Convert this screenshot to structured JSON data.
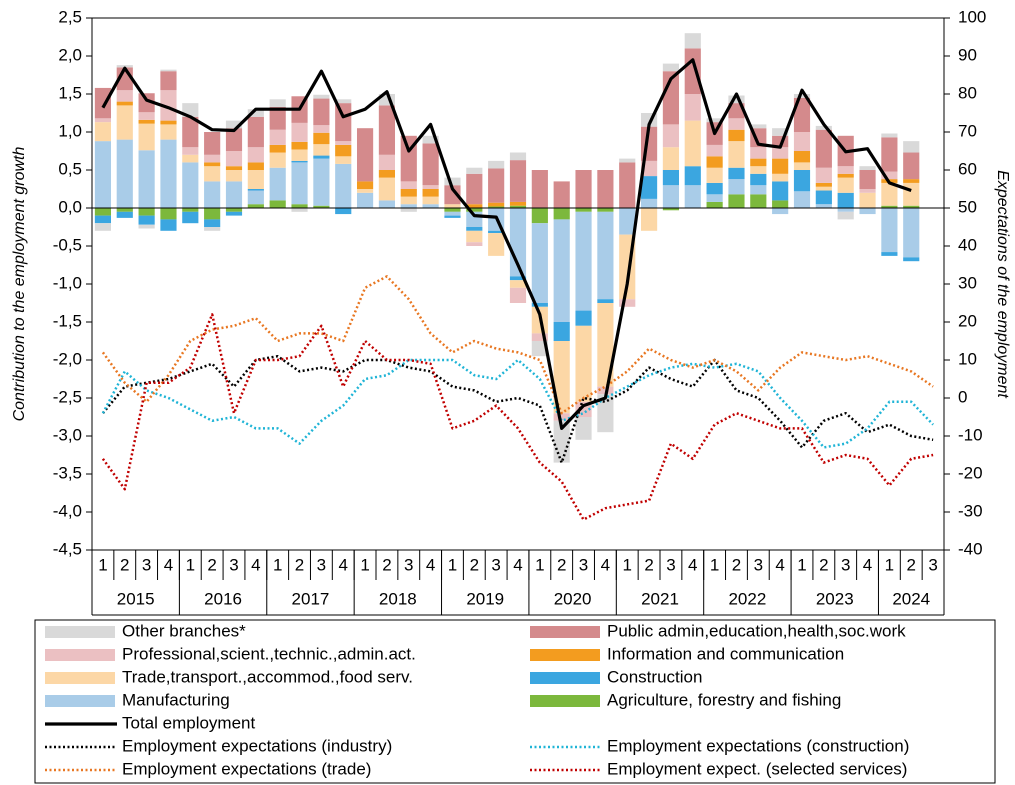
{
  "chart_data": {
    "type": "stacked_bar_line",
    "y_label": "Contribution to the employment growth",
    "y2_label": "Expectations of the employment",
    "categories": [
      "1",
      "2",
      "3",
      "4",
      "1",
      "2",
      "3",
      "4",
      "1",
      "2",
      "3",
      "4",
      "1",
      "2",
      "3",
      "4",
      "1",
      "2",
      "3",
      "4",
      "1",
      "2",
      "3",
      "4",
      "1",
      "2",
      "3",
      "4",
      "1",
      "2",
      "3",
      "4",
      "1",
      "2",
      "3",
      "4",
      "1",
      "2",
      "3"
    ],
    "years": [
      "2015",
      "2016",
      "2017",
      "2018",
      "2019",
      "2020",
      "2021",
      "2022",
      "2023",
      "2024"
    ],
    "ylim": [
      -4.5,
      2.5
    ],
    "yticks": [
      {
        "value": 2.5,
        "label": "2,5"
      },
      {
        "value": 2.0,
        "label": "2,0"
      },
      {
        "value": 1.5,
        "label": "1,5"
      },
      {
        "value": 1.0,
        "label": "1,0"
      },
      {
        "value": 0.5,
        "label": "0,5"
      },
      {
        "value": 0,
        "label": "0,0"
      },
      {
        "value": -0.5,
        "label": "-0,5"
      },
      {
        "value": -1.0,
        "label": "-1,0"
      },
      {
        "value": -1.5,
        "label": "-1,5"
      },
      {
        "value": -2.0,
        "label": "-2,0"
      },
      {
        "value": -2.5,
        "label": "-2,5"
      },
      {
        "value": -3.0,
        "label": "-3,0"
      },
      {
        "value": -3.5,
        "label": "-3,5"
      },
      {
        "value": -4.0,
        "label": "-4,0"
      },
      {
        "value": -4.5,
        "label": "-4,5"
      }
    ],
    "y2lim": [
      -40,
      100
    ],
    "y2ticks": [
      100,
      90,
      80,
      70,
      60,
      50,
      40,
      30,
      20,
      10,
      0,
      -10,
      -20,
      -30,
      -40
    ],
    "grid": false,
    "series": [
      {
        "name": "Other branches*",
        "type": "bar",
        "color": "#d9d9d9",
        "values": [
          -0.1,
          0.03,
          -0.05,
          0.02,
          0.18,
          -0.05,
          0.1,
          0.1,
          0.1,
          -0.05,
          0.05,
          0.05,
          0.0,
          0.15,
          -0.05,
          0.1,
          0.1,
          0.08,
          0.1,
          0.1,
          -0.2,
          -0.55,
          -0.3,
          -0.5,
          0.05,
          0.18,
          0.1,
          0.2,
          0.05,
          0.1,
          0.05,
          0.1,
          0.05,
          0.05,
          -0.1,
          0.05,
          0.05,
          0.15,
          null
        ]
      },
      {
        "name": "Public admin,education,health,soc.work",
        "type": "bar",
        "color": "#d48a8c",
        "values": [
          0.4,
          0.3,
          0.25,
          0.25,
          0.4,
          0.3,
          0.3,
          0.4,
          0.3,
          0.35,
          0.35,
          0.5,
          0.7,
          0.65,
          0.6,
          0.55,
          0.25,
          0.4,
          0.45,
          0.55,
          0.5,
          0.35,
          0.5,
          0.5,
          0.6,
          0.45,
          0.7,
          0.6,
          0.3,
          0.2,
          0.25,
          0.15,
          0.45,
          0.5,
          0.4,
          0.25,
          0.45,
          0.35,
          null
        ]
      },
      {
        "name": "Professional,scient.,technic.,admin.act.",
        "type": "bar",
        "color": "#ebc0c2",
        "values": [
          0.05,
          0.15,
          0.1,
          0.4,
          0.1,
          0.1,
          0.2,
          0.2,
          0.2,
          0.25,
          0.1,
          0.05,
          0.0,
          0.2,
          0.1,
          0.05,
          0.0,
          -0.05,
          0.0,
          -0.2,
          -0.1,
          -0.1,
          -0.2,
          -0.1,
          -0.1,
          0.2,
          0.3,
          0.35,
          0.15,
          0.15,
          0.15,
          0.15,
          0.25,
          0.2,
          0.1,
          0.05,
          0.1,
          0.0,
          null
        ]
      },
      {
        "name": "Information and communication",
        "type": "bar",
        "color": "#f39c1f",
        "values": [
          0.0,
          0.05,
          0.05,
          0.05,
          0.0,
          0.05,
          0.05,
          0.1,
          0.1,
          0.1,
          0.15,
          0.15,
          0.1,
          0.1,
          0.1,
          0.1,
          0.0,
          0.05,
          0.05,
          0.05,
          0.0,
          0.0,
          0.0,
          0.0,
          0.0,
          0.0,
          0.0,
          0.0,
          0.15,
          0.15,
          0.1,
          0.2,
          0.15,
          0.05,
          0.05,
          0.0,
          0.05,
          0.05,
          null
        ]
      },
      {
        "name": "Trade,transport.,accommod.,food serv.",
        "type": "bar",
        "color": "#fcd7a6",
        "values": [
          0.25,
          0.45,
          0.35,
          0.2,
          0.1,
          0.2,
          0.15,
          0.25,
          0.2,
          0.15,
          0.15,
          0.1,
          0.05,
          0.3,
          0.1,
          0.1,
          0.05,
          -0.15,
          -0.3,
          -0.1,
          -0.35,
          -0.95,
          -1.0,
          -1.1,
          -0.85,
          -0.3,
          0.3,
          0.6,
          0.2,
          0.35,
          0.1,
          0.1,
          0.1,
          0.05,
          0.2,
          0.2,
          0.3,
          0.3,
          null
        ]
      },
      {
        "name": "Construction",
        "type": "bar",
        "color": "#3ba6e0",
        "values": [
          -0.1,
          -0.08,
          -0.12,
          -0.15,
          -0.15,
          -0.1,
          -0.05,
          0.02,
          0.0,
          0.02,
          0.04,
          -0.08,
          0.0,
          0.0,
          0.0,
          0.0,
          -0.03,
          -0.05,
          -0.03,
          -0.05,
          -0.05,
          -0.25,
          -0.2,
          -0.05,
          0.0,
          0.3,
          0.2,
          0.25,
          0.15,
          0.15,
          0.15,
          0.25,
          0.28,
          0.18,
          0.2,
          0.0,
          -0.05,
          -0.05,
          null
        ]
      },
      {
        "name": "Manufacturing",
        "type": "bar",
        "color": "#a9cce8",
        "values": [
          0.88,
          0.9,
          0.76,
          0.9,
          0.6,
          0.35,
          0.35,
          0.18,
          0.43,
          0.55,
          0.62,
          0.58,
          0.2,
          0.1,
          0.05,
          0.05,
          -0.05,
          -0.2,
          -0.3,
          -0.9,
          -1.05,
          -1.35,
          -1.3,
          -1.15,
          -0.35,
          0.12,
          0.3,
          0.3,
          0.1,
          0.2,
          0.12,
          -0.08,
          0.22,
          0.05,
          -0.05,
          -0.08,
          -0.58,
          -0.65,
          null
        ]
      },
      {
        "name": "Agriculture, forestry and fishing",
        "type": "bar",
        "color": "#7cb83c",
        "values": [
          -0.1,
          -0.05,
          -0.1,
          -0.15,
          -0.05,
          -0.15,
          -0.05,
          0.05,
          0.1,
          0.05,
          0.03,
          0.0,
          0.0,
          0.0,
          0.0,
          0.0,
          -0.05,
          -0.05,
          0.02,
          0.03,
          -0.2,
          -0.15,
          -0.05,
          -0.05,
          0.0,
          0.0,
          -0.03,
          0.0,
          0.08,
          0.18,
          0.18,
          0.1,
          0.0,
          0.0,
          0.0,
          0.0,
          0.03,
          0.03,
          null
        ]
      },
      {
        "name": "Total employment",
        "type": "line",
        "color": "#000000",
        "line_style": "solid",
        "values": [
          1.32,
          1.84,
          1.42,
          1.32,
          1.2,
          1.03,
          1.02,
          1.3,
          1.3,
          1.3,
          1.8,
          1.2,
          1.3,
          1.53,
          0.75,
          1.1,
          0.25,
          -0.1,
          -0.12,
          -0.75,
          -1.4,
          -2.9,
          -2.6,
          -2.5,
          -1.0,
          1.1,
          1.7,
          1.95,
          0.98,
          1.5,
          0.84,
          0.8,
          1.55,
          1.1,
          0.74,
          0.78,
          0.33,
          0.23,
          null
        ]
      },
      {
        "name": "Employment expectations (industry)",
        "type": "line",
        "axis": "y2",
        "color": "#000000",
        "line_style": "dotted",
        "values": [
          -4,
          3,
          4,
          5,
          7,
          9,
          3,
          10,
          11,
          7,
          8,
          7,
          10,
          10,
          8,
          7,
          3,
          2,
          -1,
          0,
          -2,
          -17,
          0,
          -1,
          2,
          8,
          5,
          3,
          10,
          2,
          0,
          -6,
          -13,
          -6,
          -4,
          -9,
          -7,
          -10,
          -11
        ]
      },
      {
        "name": "Employment expectations (construction)",
        "type": "line",
        "axis": "y2",
        "color": "#1fb4d6",
        "line_style": "dotted",
        "values": [
          -4,
          7,
          2,
          0,
          -3,
          -6,
          -5,
          -8,
          -8,
          -12,
          -6,
          -2,
          5,
          6,
          10,
          10,
          10,
          6,
          5,
          10,
          5,
          -6,
          -4,
          0,
          3,
          6,
          8,
          9,
          8,
          9,
          7,
          0,
          -6,
          -13,
          -12,
          -8,
          -1,
          -1,
          -7
        ]
      },
      {
        "name": "Employment expectations (trade)",
        "type": "line",
        "axis": "y2",
        "color": "#e87722",
        "line_style": "dotted",
        "values": [
          12,
          4,
          -1,
          6,
          15,
          18,
          19,
          21,
          15,
          17,
          17,
          15,
          29,
          32,
          26,
          17,
          12,
          15,
          13,
          12,
          10,
          -4,
          0,
          3,
          7,
          13,
          10,
          8,
          10,
          7,
          2,
          8,
          12,
          11,
          10,
          11,
          9,
          7,
          3
        ]
      },
      {
        "name": "Employment expect. (selected services)",
        "type": "line",
        "axis": "y2",
        "color": "#c00000",
        "line_style": "dotted",
        "values": [
          -16,
          -24,
          4,
          4,
          8,
          22,
          -4,
          10,
          10,
          11,
          19,
          3,
          15,
          10,
          10,
          9,
          -8,
          -6,
          -2,
          -8,
          -17,
          -22,
          -32,
          -29,
          -28,
          -27,
          -12,
          -16,
          -7,
          -4,
          -6,
          -8,
          -8,
          -17,
          -15,
          -16,
          -23,
          -16,
          -15
        ]
      }
    ]
  }
}
